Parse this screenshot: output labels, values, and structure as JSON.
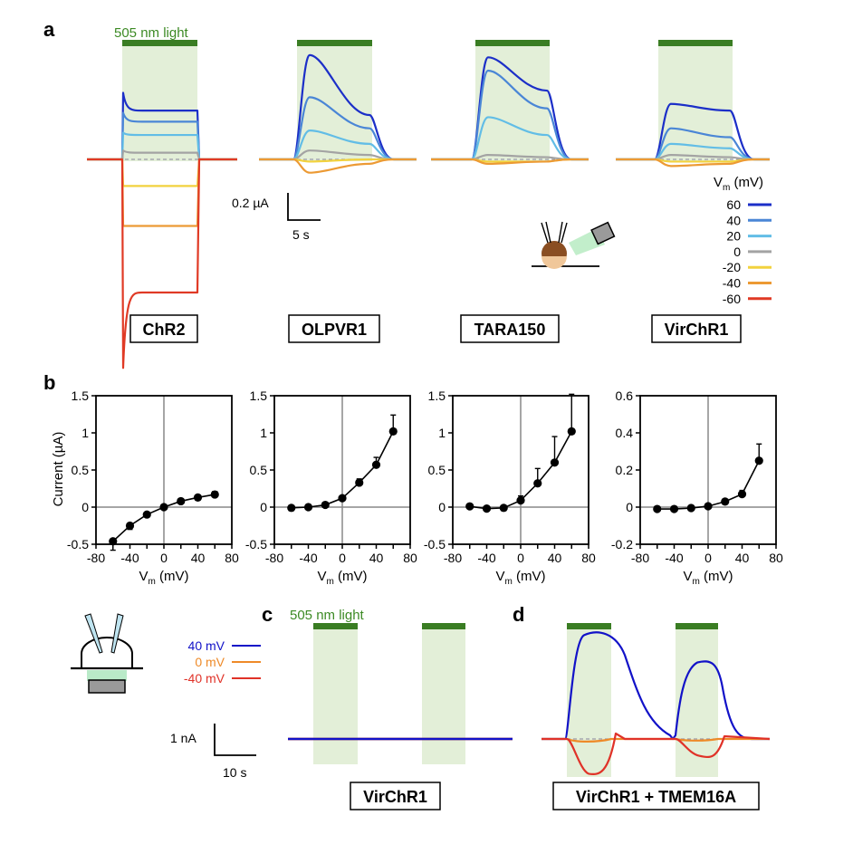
{
  "colors": {
    "light_bar": "#3a7d23",
    "light_shade": "#e3efd8",
    "light_text": "#3c8a24",
    "baseline": "#9a9aa8",
    "mV_60": "#1c2fc8",
    "mV_40": "#4a86d6",
    "mV_20": "#62bde6",
    "mV_0": "#a3a3a3",
    "mV_minus20": "#f2d23e",
    "mV_minus40": "#ec9a34",
    "mV_minus60": "#e03a25",
    "v_40": "#1212c8",
    "v_0": "#ee8a28",
    "v_minus40": "#e03228"
  },
  "panel_a": {
    "letter": "a",
    "light_label": "505 nm light",
    "constructs": [
      "ChR2",
      "OLPVR1",
      "TARA150",
      "VirChR1"
    ],
    "scale_current": "0.2 µA",
    "scale_time": "5 s",
    "legend_title_main": "V",
    "legend_title_sub": "m",
    "legend_title_unit": " (mV)",
    "legend_entries": [
      "60",
      "40",
      "20",
      "0",
      "-20",
      "-40",
      "-60"
    ]
  },
  "panel_b": {
    "letter": "b",
    "ylabel": "Current (µA)",
    "xlabel_main": "V",
    "xlabel_sub": "m",
    "xlabel_unit": " (mV)"
  },
  "panel_c": {
    "letter": "c",
    "light_label": "505 nm light",
    "construct": "VirChR1",
    "scale_current": "1 nA",
    "scale_time": "10 s",
    "legend_entries": [
      "40 mV",
      "0 mV",
      "-40 mV"
    ]
  },
  "panel_d": {
    "letter": "d",
    "construct": "VirChR1 + TMEM16A"
  },
  "chart_data": [
    {
      "type": "line",
      "panel": "a",
      "construct": "ChR2",
      "ylim": [
        -1.0,
        0.35
      ],
      "series": [
        {
          "name": "60",
          "values_uA": {
            "peak": 0.3,
            "steady": 0.22
          }
        },
        {
          "name": "40",
          "values_uA": {
            "peak": 0.21,
            "steady": 0.17
          }
        },
        {
          "name": "20",
          "values_uA": {
            "peak": 0.12,
            "steady": 0.11
          }
        },
        {
          "name": "0",
          "values_uA": {
            "peak": 0.04,
            "steady": 0.03
          }
        },
        {
          "name": "-20",
          "values_uA": {
            "peak": -0.12,
            "steady": -0.12
          }
        },
        {
          "name": "-40",
          "values_uA": {
            "peak": -0.3,
            "steady": -0.3
          }
        },
        {
          "name": "-60",
          "values_uA": {
            "peak": -0.98,
            "steady": -0.6
          }
        }
      ]
    },
    {
      "type": "line",
      "panel": "a",
      "construct": "OLPVR1",
      "series": [
        {
          "name": "60",
          "values_uA": {
            "peak": 0.47,
            "steady": 0.2
          }
        },
        {
          "name": "40",
          "values_uA": {
            "peak": 0.28,
            "steady": 0.14
          }
        },
        {
          "name": "20",
          "values_uA": {
            "peak": 0.13,
            "steady": 0.07
          }
        },
        {
          "name": "0",
          "values_uA": {
            "peak": 0.04,
            "steady": 0.02
          }
        },
        {
          "name": "-20",
          "values_uA": {
            "peak": -0.01,
            "steady": 0
          }
        },
        {
          "name": "-40",
          "values_uA": {
            "peak": -0.06,
            "steady": -0.02
          }
        }
      ]
    },
    {
      "type": "line",
      "panel": "a",
      "construct": "TARA150",
      "series": [
        {
          "name": "60",
          "values_uA": {
            "peak": 0.46,
            "steady": 0.31
          }
        },
        {
          "name": "40",
          "values_uA": {
            "peak": 0.4,
            "steady": 0.23
          }
        },
        {
          "name": "20",
          "values_uA": {
            "peak": 0.19,
            "steady": 0.11
          }
        },
        {
          "name": "0",
          "values_uA": {
            "peak": 0.02,
            "steady": 0.01
          }
        },
        {
          "name": "-20",
          "values_uA": {
            "peak": -0.01,
            "steady": -0.01
          }
        },
        {
          "name": "-40",
          "values_uA": {
            "peak": -0.02,
            "steady": -0.01
          }
        }
      ]
    },
    {
      "type": "line",
      "panel": "a",
      "construct": "VirChR1",
      "series": [
        {
          "name": "60",
          "values_uA": {
            "peak": 0.25,
            "steady": 0.22
          }
        },
        {
          "name": "40",
          "values_uA": {
            "peak": 0.14,
            "steady": 0.1
          }
        },
        {
          "name": "20",
          "values_uA": {
            "peak": 0.07,
            "steady": 0.05
          }
        },
        {
          "name": "0",
          "values_uA": {
            "peak": 0.02,
            "steady": 0.01
          }
        },
        {
          "name": "-20",
          "values_uA": {
            "peak": -0.01,
            "steady": -0.01
          }
        },
        {
          "name": "-40",
          "values_uA": {
            "peak": -0.03,
            "steady": -0.02
          }
        }
      ]
    },
    {
      "type": "scatter",
      "panel": "b",
      "construct": "ChR2",
      "xlabel": "Vm (mV)",
      "ylabel": "Current (µA)",
      "xlim": [
        -80,
        80
      ],
      "ylim": [
        -0.5,
        1.5
      ],
      "xticks": [
        -80,
        -60,
        -40,
        -20,
        0,
        20,
        40,
        60,
        80
      ],
      "xticklabels": [
        "-80",
        "",
        "-40",
        "",
        "0",
        "",
        "40",
        "",
        "80"
      ],
      "yticks": [
        -0.5,
        0,
        0.5,
        1,
        1.5
      ],
      "yticklabels": [
        "-0.5",
        "0",
        "0.5",
        "1",
        "1.5"
      ],
      "x": [
        -60,
        -40,
        -20,
        0,
        20,
        40,
        60
      ],
      "y": [
        -0.46,
        -0.25,
        -0.1,
        0,
        0.08,
        0.13,
        0.17
      ],
      "err": [
        0.12,
        0.05,
        0.02,
        0.02,
        0.03,
        0.03,
        0.04
      ]
    },
    {
      "type": "scatter",
      "panel": "b",
      "construct": "OLPVR1",
      "xlabel": "Vm (mV)",
      "xlim": [
        -80,
        80
      ],
      "ylim": [
        -0.5,
        1.5
      ],
      "xticks": [
        -80,
        -60,
        -40,
        -20,
        0,
        20,
        40,
        60,
        80
      ],
      "xticklabels": [
        "-80",
        "",
        "-40",
        "",
        "0",
        "",
        "40",
        "",
        "80"
      ],
      "yticks": [
        -0.5,
        0,
        0.5,
        1,
        1.5
      ],
      "yticklabels": [
        "-0.5",
        "0",
        "0.5",
        "1",
        "1.5"
      ],
      "x": [
        -60,
        -40,
        -20,
        0,
        20,
        40,
        60
      ],
      "y": [
        -0.01,
        0,
        0.03,
        0.12,
        0.33,
        0.57,
        1.02
      ],
      "err": [
        0.01,
        0.01,
        0.01,
        0.03,
        0.05,
        0.1,
        0.22
      ]
    },
    {
      "type": "scatter",
      "panel": "b",
      "construct": "TARA150",
      "xlabel": "Vm (mV)",
      "xlim": [
        -80,
        80
      ],
      "ylim": [
        -0.5,
        1.5
      ],
      "xticks": [
        -80,
        -60,
        -40,
        -20,
        0,
        20,
        40,
        60,
        80
      ],
      "xticklabels": [
        "-80",
        "",
        "-40",
        "",
        "0",
        "",
        "40",
        "",
        "80"
      ],
      "yticks": [
        -0.5,
        0,
        0.5,
        1,
        1.5
      ],
      "yticklabels": [
        "-0.5",
        "0",
        "0.5",
        "1",
        "1.5"
      ],
      "x": [
        -60,
        -40,
        -20,
        0,
        20,
        40,
        60
      ],
      "y": [
        0.01,
        -0.02,
        -0.01,
        0.09,
        0.32,
        0.6,
        1.02
      ],
      "err": [
        0.01,
        0.01,
        0.01,
        0.06,
        0.2,
        0.35,
        0.5
      ]
    },
    {
      "type": "scatter",
      "panel": "b",
      "construct": "VirChR1",
      "xlabel": "Vm (mV)",
      "xlim": [
        -80,
        80
      ],
      "ylim": [
        -0.2,
        0.6
      ],
      "xticks": [
        -80,
        -60,
        -40,
        -20,
        0,
        20,
        40,
        60,
        80
      ],
      "xticklabels": [
        "-80",
        "",
        "-40",
        "",
        "0",
        "",
        "40",
        "",
        "80"
      ],
      "yticks": [
        -0.2,
        0,
        0.2,
        0.4,
        0.6
      ],
      "yticklabels": [
        "-0.2",
        "0",
        "0.2",
        "0.4",
        "0.6"
      ],
      "x": [
        -60,
        -40,
        -20,
        0,
        20,
        40,
        60
      ],
      "y": [
        -0.01,
        -0.01,
        -0.005,
        0.005,
        0.03,
        0.07,
        0.25
      ],
      "err": [
        0.005,
        0.005,
        0.005,
        0.01,
        0.01,
        0.02,
        0.09
      ]
    },
    {
      "type": "line",
      "panel": "c",
      "construct": "VirChR1",
      "series": [
        {
          "name": "40 mV",
          "values_nA": {
            "during_light": 0
          }
        },
        {
          "name": "0 mV",
          "values_nA": {
            "during_light": 0
          }
        },
        {
          "name": "-40 mV",
          "values_nA": {
            "during_light": 0
          }
        }
      ]
    },
    {
      "type": "line",
      "panel": "d",
      "construct": "VirChR1 + TMEM16A",
      "series": [
        {
          "name": "40 mV",
          "values_nA": {
            "pulse1_peak": 2.45,
            "pulse2_peak": 1.8
          }
        },
        {
          "name": "0 mV",
          "values_nA": {
            "pulse1_peak": -0.08,
            "pulse2_peak": -0.05
          }
        },
        {
          "name": "-40 mV",
          "values_nA": {
            "pulse1_peak": -0.8,
            "pulse2_peak": -0.45
          }
        }
      ]
    }
  ]
}
